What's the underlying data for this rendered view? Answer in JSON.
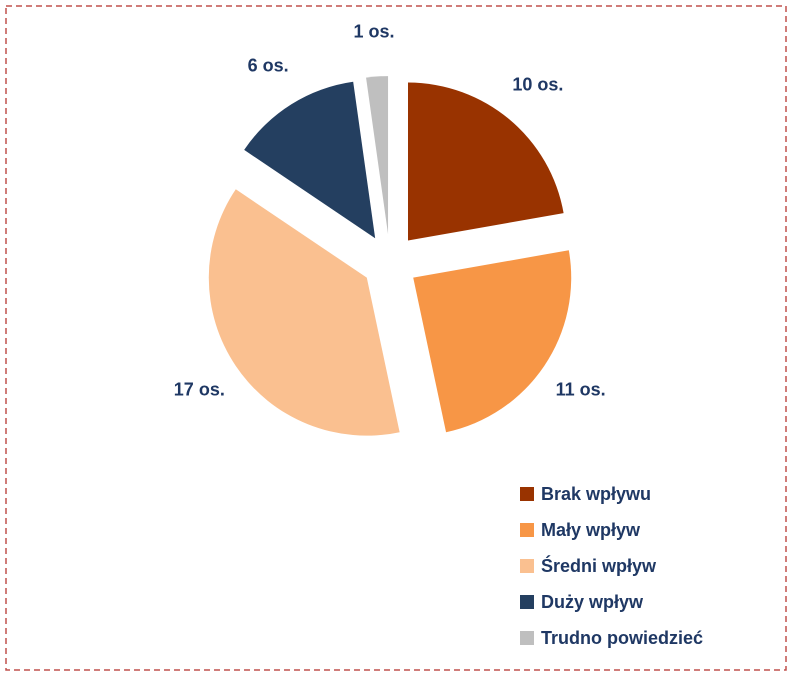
{
  "chart_data": {
    "type": "pie",
    "categories": [
      "Brak wpływu",
      "Mały wpływ",
      "Średni wpływ",
      "Duży wpływ",
      "Trudno powiedzieć"
    ],
    "values": [
      10,
      11,
      17,
      6,
      1
    ],
    "value_labels": [
      "10 os.",
      "11 os.",
      "17 os.",
      "6 os.",
      "1 os."
    ],
    "colors": [
      "#993300",
      "#f79646",
      "#fac090",
      "#243f60",
      "#bfbfbf"
    ],
    "legend": "bottom-right"
  }
}
